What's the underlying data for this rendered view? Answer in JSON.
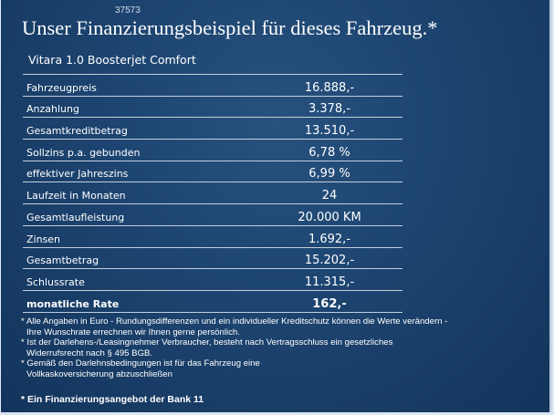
{
  "slide_number": "37573",
  "headline": "Unser Finanzierungsbeispiel für dieses Fahrzeug.*",
  "model": "Vitara 1.0 Boosterjet Comfort",
  "rows": [
    {
      "label": "Fahrzeugpreis",
      "value": "16.888,-"
    },
    {
      "label": "Anzahlung",
      "value": "3.378,-"
    },
    {
      "label": "Gesamtkreditbetrag",
      "value": "13.510,-"
    },
    {
      "label": "Sollzins p.a. gebunden",
      "value": "6,78 %"
    },
    {
      "label": "effektiver Jahreszins",
      "value": "6,99 %"
    },
    {
      "label": "Laufzeit in Monaten",
      "value": "24"
    },
    {
      "label": "Gesamtlaufleistung",
      "value": "20.000 KM"
    },
    {
      "label": "Zinsen",
      "value": "1.692,-"
    },
    {
      "label": "Gesamtbetrag",
      "value": "15.202,-"
    },
    {
      "label": "Schlussrate",
      "value": "11.315,-"
    },
    {
      "label": "monatliche Rate",
      "value": "162,-"
    }
  ],
  "notes": [
    "* Alle Angaben in Euro - Rundungsdifferenzen und ein individueller Kreditschutz können die Werte verändern -",
    "Ihre Wunschrate errechnen wir Ihnen gerne persönlich.",
    "* Ist der Darlehens-/Leasingnehmer Verbraucher, besteht nach Vertragsschluss ein gesetzliches",
    "Widerrufsrecht  nach § 495 BGB.",
    "* Gemäß den Darlehnsbedingungen ist für das Fahrzeug eine",
    "Vollkaskoversicherung abzuschließen"
  ],
  "footer": "* Ein Finanzierungsangebot der Bank 11",
  "colors": {
    "background": "#1d4470",
    "text": "#ffffff",
    "rule": "#c3cfdc"
  }
}
